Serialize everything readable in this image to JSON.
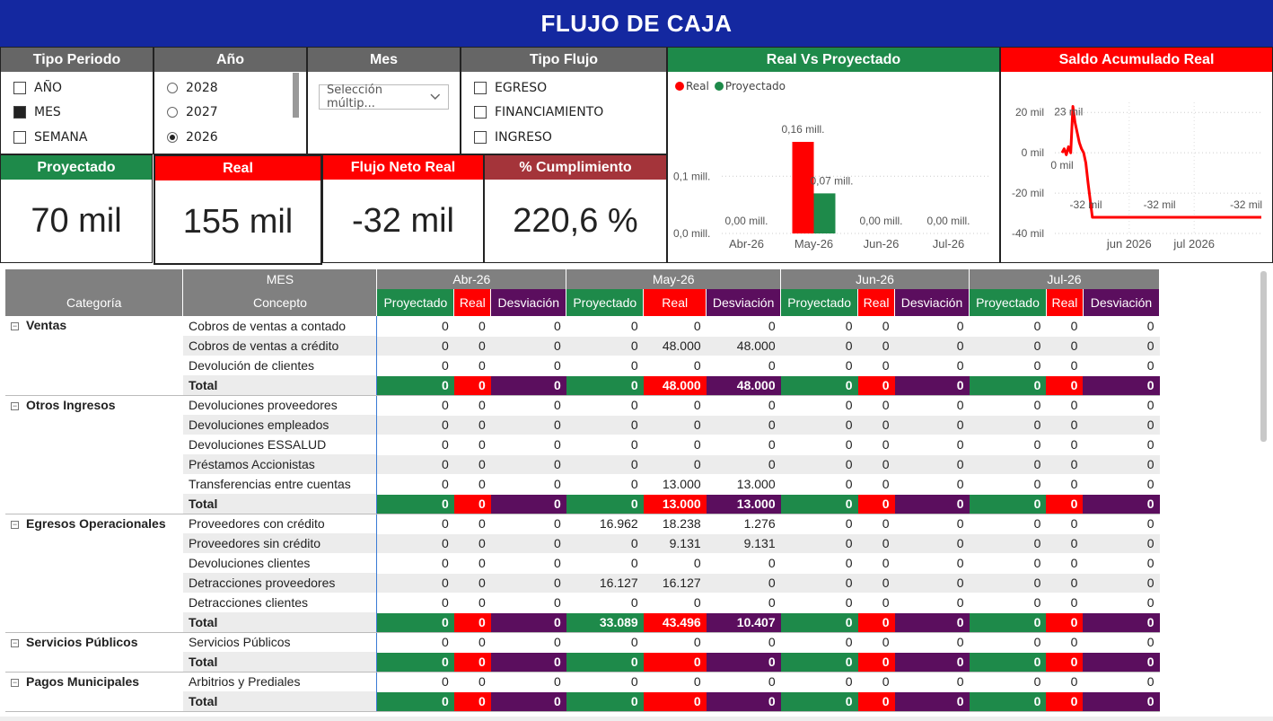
{
  "title": "FLUJO DE CAJA",
  "slicers": {
    "tipo_periodo": {
      "label": "Tipo Periodo",
      "items": [
        {
          "label": "AÑO",
          "checked": false
        },
        {
          "label": "MES",
          "checked": true
        },
        {
          "label": "SEMANA",
          "checked": false
        }
      ]
    },
    "anio": {
      "label": "Año",
      "items": [
        {
          "label": "2028",
          "checked": false
        },
        {
          "label": "2027",
          "checked": false
        },
        {
          "label": "2026",
          "checked": true
        }
      ]
    },
    "mes": {
      "label": "Mes",
      "value": "Selección múltip..."
    },
    "tipo_flujo": {
      "label": "Tipo Flujo",
      "items": [
        {
          "label": "EGRESO",
          "checked": false
        },
        {
          "label": "FINANCIAMIENTO",
          "checked": false
        },
        {
          "label": "INGRESO",
          "checked": false
        }
      ]
    }
  },
  "kpis": {
    "proyectado": {
      "label": "Proyectado",
      "value": "70 mil"
    },
    "real": {
      "label": "Real",
      "value": "155 mil"
    },
    "flujo_neto": {
      "label": "Flujo Neto Real",
      "value": "-32 mil"
    },
    "cumplimiento": {
      "label": "% Cumplimiento",
      "value": "220,6 %"
    }
  },
  "colors": {
    "green": "#1e8a4a",
    "red": "#ff0000",
    "purple": "#5b0e5e",
    "navy": "#1428a0"
  },
  "chart_data": [
    {
      "type": "bar",
      "title": "Real Vs Proyectado",
      "categories": [
        "Abr-26",
        "May-26",
        "Jun-26",
        "Jul-26"
      ],
      "series": [
        {
          "name": "Real",
          "color": "#ff0000",
          "values": [
            0,
            0.16,
            0,
            0
          ],
          "labels": [
            "0,00 mill.",
            "0,16 mill.",
            "0,00 mill.",
            "0,00 mill."
          ]
        },
        {
          "name": "Proyectado",
          "color": "#1e8a4a",
          "values": [
            0,
            0.07,
            0,
            0
          ],
          "labels": [
            "",
            "0,07 mill.",
            "",
            ""
          ]
        }
      ],
      "yticks": [
        "0,0 mill.",
        "0,1 mill."
      ],
      "ylim": [
        0,
        0.16
      ]
    },
    {
      "type": "line",
      "title": "Saldo Acumulado Real",
      "series": [
        {
          "name": "Real",
          "color": "#ff0000",
          "x": [
            "2026-05-01",
            "2026-05-02",
            "2026-05-03",
            "2026-05-04",
            "2026-05-05",
            "2026-05-06",
            "2026-05-07",
            "2026-05-08",
            "2026-05-09",
            "2026-05-10",
            "2026-05-11",
            "2026-05-12",
            "2026-05-13",
            "2026-05-15",
            "2026-05-20",
            "2026-06-01",
            "2026-06-15",
            "2026-07-01",
            "2026-07-15",
            "2026-08-01"
          ],
          "y": [
            0,
            2,
            -1,
            3,
            0,
            23,
            15,
            10,
            5,
            2,
            0,
            -5,
            -15,
            -32,
            -32,
            -32,
            -32,
            -32,
            -32,
            -32
          ]
        }
      ],
      "labels": [
        "23 mil",
        "0 mil",
        "-32 mil",
        "-32 mil",
        "-32 mil"
      ],
      "yticks": [
        "20 mil",
        "0 mil",
        "-20 mil",
        "-40 mil"
      ],
      "xticks": [
        "jun 2026",
        "jul 2026"
      ],
      "ylim": [
        -40,
        25
      ]
    }
  ],
  "table": {
    "corner_top": "MES",
    "col_categoria": "Categoría",
    "col_concepto": "Concepto",
    "months": [
      "Abr-26",
      "May-26",
      "Jun-26",
      "Jul-26"
    ],
    "sub": [
      "Proyectado",
      "Real",
      "Desviación"
    ],
    "groups": [
      {
        "name": "Ventas",
        "rows": [
          {
            "concepto": "Cobros de ventas a contado",
            "v": [
              "0",
              "0",
              "0",
              "0",
              "0",
              "0",
              "0",
              "0",
              "0",
              "0",
              "0",
              "0"
            ]
          },
          {
            "concepto": "Cobros de ventas a crédito",
            "v": [
              "0",
              "0",
              "0",
              "0",
              "48.000",
              "48.000",
              "0",
              "0",
              "0",
              "0",
              "0",
              "0"
            ]
          },
          {
            "concepto": "Devolución de clientes",
            "v": [
              "0",
              "0",
              "0",
              "0",
              "0",
              "0",
              "0",
              "0",
              "0",
              "0",
              "0",
              "0"
            ]
          }
        ],
        "total": [
          "0",
          "0",
          "0",
          "0",
          "48.000",
          "48.000",
          "0",
          "0",
          "0",
          "0",
          "0",
          "0"
        ]
      },
      {
        "name": "Otros Ingresos",
        "rows": [
          {
            "concepto": "Devoluciones proveedores",
            "v": [
              "0",
              "0",
              "0",
              "0",
              "0",
              "0",
              "0",
              "0",
              "0",
              "0",
              "0",
              "0"
            ]
          },
          {
            "concepto": "Devoluciones empleados",
            "v": [
              "0",
              "0",
              "0",
              "0",
              "0",
              "0",
              "0",
              "0",
              "0",
              "0",
              "0",
              "0"
            ]
          },
          {
            "concepto": "Devoluciones ESSALUD",
            "v": [
              "0",
              "0",
              "0",
              "0",
              "0",
              "0",
              "0",
              "0",
              "0",
              "0",
              "0",
              "0"
            ]
          },
          {
            "concepto": "Préstamos Accionistas",
            "v": [
              "0",
              "0",
              "0",
              "0",
              "0",
              "0",
              "0",
              "0",
              "0",
              "0",
              "0",
              "0"
            ]
          },
          {
            "concepto": "Transferencias entre cuentas",
            "v": [
              "0",
              "0",
              "0",
              "0",
              "13.000",
              "13.000",
              "0",
              "0",
              "0",
              "0",
              "0",
              "0"
            ]
          }
        ],
        "total": [
          "0",
          "0",
          "0",
          "0",
          "13.000",
          "13.000",
          "0",
          "0",
          "0",
          "0",
          "0",
          "0"
        ]
      },
      {
        "name": "Egresos Operacionales",
        "rows": [
          {
            "concepto": "Proveedores con crédito",
            "v": [
              "0",
              "0",
              "0",
              "16.962",
              "18.238",
              "1.276",
              "0",
              "0",
              "0",
              "0",
              "0",
              "0"
            ]
          },
          {
            "concepto": "Proveedores sin crédito",
            "v": [
              "0",
              "0",
              "0",
              "0",
              "9.131",
              "9.131",
              "0",
              "0",
              "0",
              "0",
              "0",
              "0"
            ]
          },
          {
            "concepto": "Devoluciones clientes",
            "v": [
              "0",
              "0",
              "0",
              "0",
              "0",
              "0",
              "0",
              "0",
              "0",
              "0",
              "0",
              "0"
            ]
          },
          {
            "concepto": "Detracciones proveedores",
            "v": [
              "0",
              "0",
              "0",
              "16.127",
              "16.127",
              "0",
              "0",
              "0",
              "0",
              "0",
              "0",
              "0"
            ]
          },
          {
            "concepto": "Detracciones clientes",
            "v": [
              "0",
              "0",
              "0",
              "0",
              "0",
              "0",
              "0",
              "0",
              "0",
              "0",
              "0",
              "0"
            ]
          }
        ],
        "total": [
          "0",
          "0",
          "0",
          "33.089",
          "43.496",
          "10.407",
          "0",
          "0",
          "0",
          "0",
          "0",
          "0"
        ]
      },
      {
        "name": "Servicios Públicos",
        "rows": [
          {
            "concepto": "Servicios Públicos",
            "v": [
              "0",
              "0",
              "0",
              "0",
              "0",
              "0",
              "0",
              "0",
              "0",
              "0",
              "0",
              "0"
            ]
          }
        ],
        "total": [
          "0",
          "0",
          "0",
          "0",
          "0",
          "0",
          "0",
          "0",
          "0",
          "0",
          "0",
          "0"
        ]
      },
      {
        "name": "Pagos Municipales",
        "rows": [
          {
            "concepto": "Arbitrios y Prediales",
            "v": [
              "0",
              "0",
              "0",
              "0",
              "0",
              "0",
              "0",
              "0",
              "0",
              "0",
              "0",
              "0"
            ]
          }
        ],
        "total": [
          "0",
          "0",
          "0",
          "0",
          "0",
          "0",
          "0",
          "0",
          "0",
          "0",
          "0",
          "0"
        ]
      }
    ],
    "total_label": "Total"
  }
}
